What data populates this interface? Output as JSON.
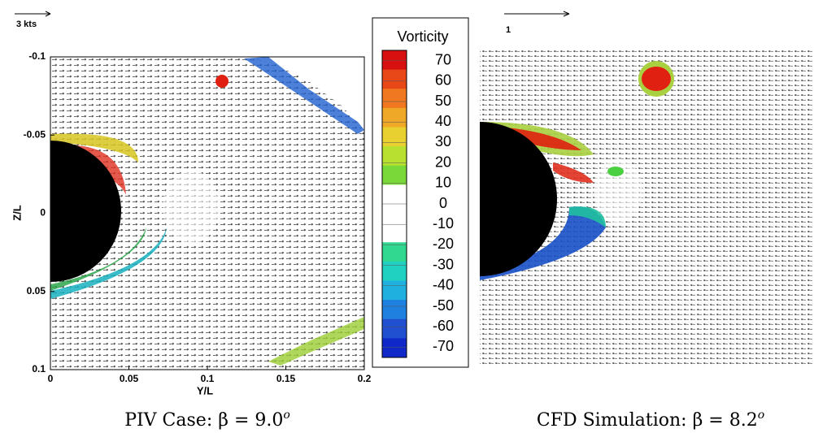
{
  "left_panel": {
    "scale_label": "3 kts",
    "y_axis": {
      "label": "Z/L",
      "ticks": [
        "-0.1",
        "-0.05",
        "0",
        "0.05",
        "0.1"
      ]
    },
    "x_axis": {
      "label": "Y/L",
      "ticks": [
        "0",
        "0.05",
        "0.1",
        "0.15",
        "0.2"
      ]
    },
    "caption": {
      "text": "PIV Case: β = 9.0",
      "superscript": "o"
    }
  },
  "colorbar": {
    "title": "Vorticity",
    "labels": [
      "70",
      "60",
      "50",
      "40",
      "30",
      "20",
      "10",
      "0",
      "-10",
      "-20",
      "-30",
      "-40",
      "-50",
      "-60",
      "-70"
    ]
  },
  "right_panel": {
    "scale_label": "1",
    "caption": {
      "text": "CFD Simulation: β = 8.2",
      "superscript": "o"
    }
  }
}
